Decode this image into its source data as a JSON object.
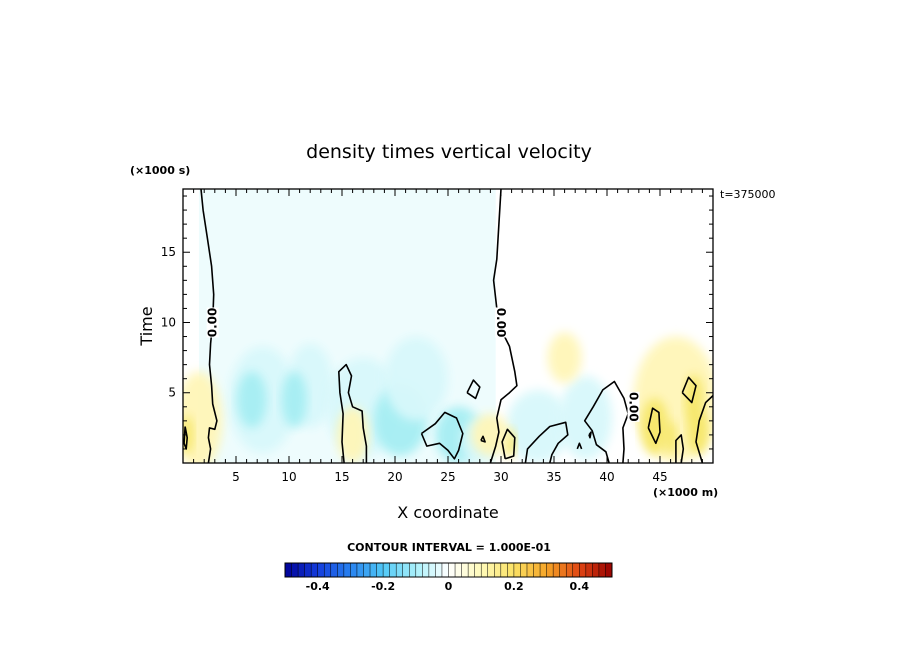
{
  "chart_data": {
    "type": "heatmap",
    "title": "density times vertical velocity",
    "xlabel": "X coordinate",
    "ylabel": "Time",
    "x_unit": "(×1000 m)",
    "y_unit": "(×1000 s)",
    "annotation": "t=375000",
    "xlim": [
      0,
      50
    ],
    "ylim": [
      0,
      19.5
    ],
    "x_ticks": [
      5,
      10,
      15,
      20,
      25,
      30,
      35,
      40,
      45
    ],
    "x_tick_labels": [
      "5",
      "10",
      "15",
      "20",
      "25",
      "30",
      "35",
      "40",
      "45"
    ],
    "y_ticks": [
      5,
      10,
      15
    ],
    "y_tick_labels": [
      "5",
      "10",
      "15"
    ],
    "contour_labels": [
      {
        "text": "0.00",
        "x": 2.8,
        "y": 10
      },
      {
        "text": "0.00",
        "x": 30,
        "y": 10
      },
      {
        "text": "0.00",
        "x": 42.5,
        "y": 4
      }
    ],
    "colorbar": {
      "title": "CONTOUR INTERVAL = 1.000E-01",
      "range": [
        -0.5,
        0.5
      ],
      "tick_values": [
        -0.4,
        -0.2,
        0,
        0.2,
        0.4
      ],
      "tick_labels": [
        "-0.4",
        "-0.2",
        "0",
        "0.2",
        "0.4"
      ]
    },
    "colors": {
      "positive_weak": "#fff6b8",
      "positive_mid": "#f6e76a",
      "negative_weak": "#d8f8fb",
      "negative_mid": "#a6eef3",
      "background_field": "#eefcfd",
      "contour": "#000000"
    }
  }
}
